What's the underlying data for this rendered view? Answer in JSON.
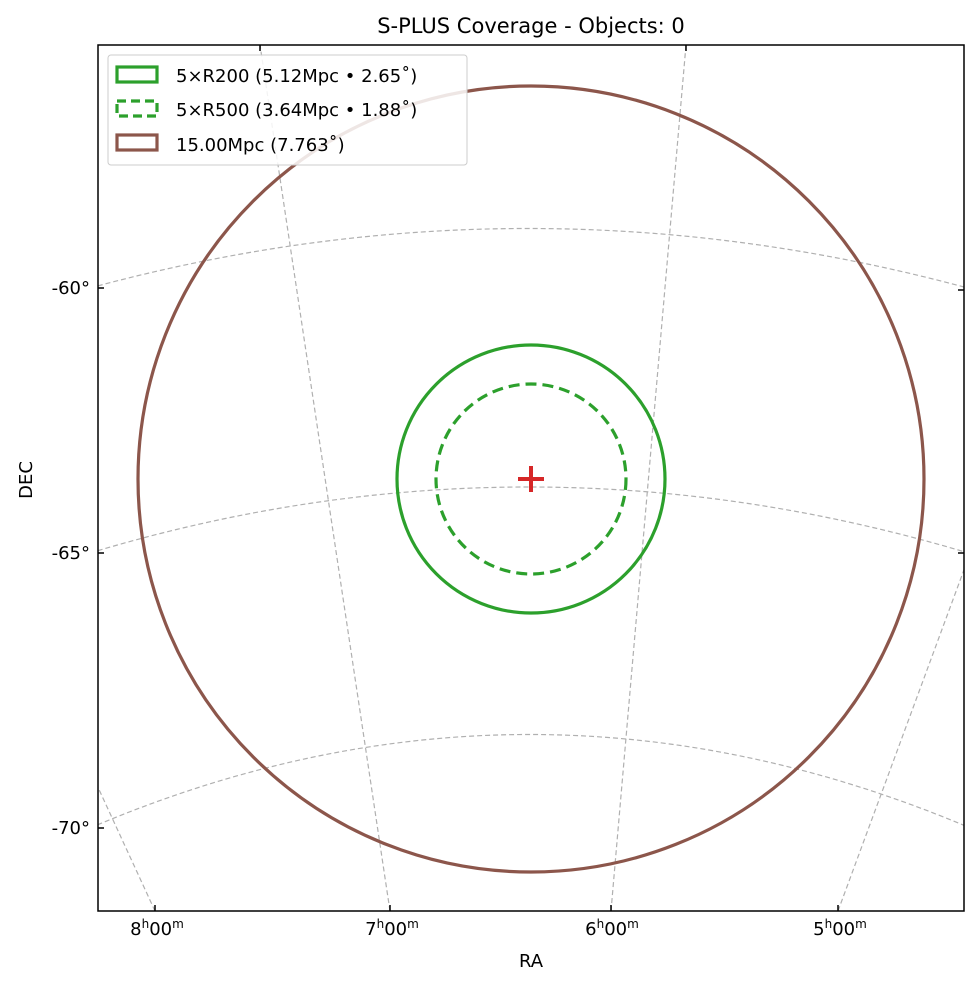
{
  "chart_data": {
    "type": "scatter",
    "title": "S-PLUS Coverage - Objects: 0",
    "xlabel": "RA",
    "ylabel": "DEC",
    "projection": "sky (RA/DEC, gnomonic-like)",
    "grid": true,
    "legend_placement": "top-left",
    "x_ticks": [
      {
        "h": "8",
        "m": "00"
      },
      {
        "h": "7",
        "m": "00"
      },
      {
        "h": "6",
        "m": "00"
      },
      {
        "h": "5",
        "m": "00"
      }
    ],
    "y_ticks": [
      "-60°",
      "-65°",
      "-70°"
    ],
    "center": {
      "marker": "+",
      "color": "#d62728"
    },
    "objects_count": 0,
    "circles": [
      {
        "label": "5×R200 (5.12Mpc • 2.65˚)",
        "radius_deg": 2.65,
        "color": "#2ca02c",
        "style": "solid"
      },
      {
        "label": "5×R500 (3.64Mpc • 1.88˚)",
        "radius_deg": 1.88,
        "color": "#2ca02c",
        "style": "dashed"
      },
      {
        "label": "15.00Mpc (7.763˚)",
        "radius_deg": 7.763,
        "color": "#8c564b",
        "style": "solid"
      }
    ]
  }
}
